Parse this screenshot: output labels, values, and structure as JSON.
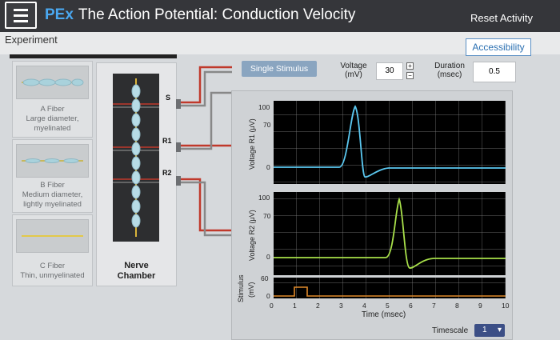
{
  "app": {
    "title_prefix": "PEx",
    "title": "The Action Potential: Conduction Velocity",
    "reset_label": "Reset Activity",
    "accessibility_label": "Accessibility"
  },
  "experiment_label": "Experiment",
  "fibers": [
    {
      "line1": "A Fiber",
      "line2": "Large diameter,",
      "line3": "myelinated"
    },
    {
      "line1": "B Fiber",
      "line2": "Medium diameter,",
      "line3": "lightly myelinated"
    },
    {
      "line1": "C Fiber",
      "line2": "Thin, unmyelinated",
      "line3": ""
    }
  ],
  "chamber": {
    "line1": "Nerve",
    "line2": "Chamber",
    "s": "S",
    "r1": "R1",
    "r2": "R2"
  },
  "controls": {
    "single_stimulus": "Single Stimulus",
    "voltage_label1": "Voltage",
    "voltage_label2": "(mV)",
    "voltage_value": "30",
    "duration_label1": "Duration",
    "duration_label2": "(msec)",
    "duration_value": "0.5",
    "plus": "+",
    "minus": "−"
  },
  "oscilloscope": {
    "r1_label": "Voltage R1 (μV)",
    "r2_label": "Voltage R2 (μV)",
    "stim_label1": "Stimulus",
    "stim_label2": "(mV)",
    "r1_ticks": [
      "100",
      "70",
      "0"
    ],
    "r2_ticks": [
      "100",
      "70",
      "0"
    ],
    "stim_ticks": [
      "60",
      "0"
    ],
    "x_ticks": [
      "0",
      "1",
      "2",
      "3",
      "4",
      "5",
      "6",
      "7",
      "8",
      "9",
      "10"
    ],
    "x_label": "Time (msec)",
    "timescale_label": "Timescale",
    "timescale_value": "1",
    "colors": {
      "r1": "#5bc8f0",
      "r2": "#a8e04a",
      "stim": "#e08a2a",
      "grid": "#8a8a8a"
    }
  }
}
